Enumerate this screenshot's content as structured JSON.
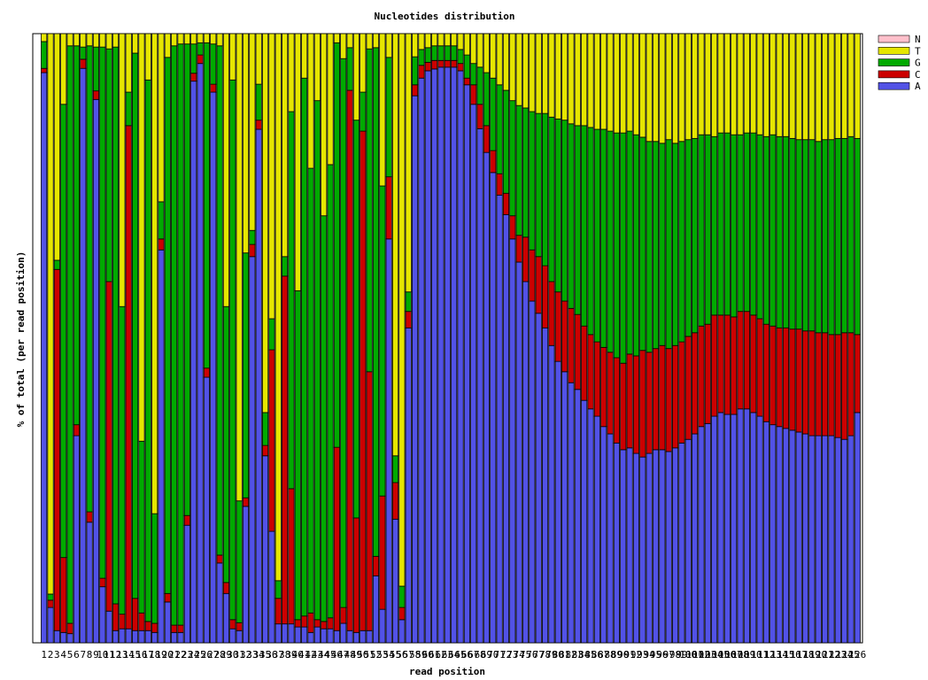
{
  "chart_data": {
    "type": "stacked-bar",
    "title": "Nucleotides distribution",
    "x_label": "read position",
    "y_label": "% of total (per read position)",
    "ylim": [
      0,
      100
    ],
    "legend_position": "upper right",
    "categories": [
      "1",
      "2",
      "3",
      "4",
      "5",
      "6",
      "7",
      "8",
      "9",
      "10",
      "11",
      "12",
      "13",
      "14",
      "15",
      "16",
      "17",
      "18",
      "19",
      "20",
      "21",
      "22",
      "23",
      "24",
      "25",
      "26",
      "27",
      "28",
      "29",
      "30",
      "31",
      "32",
      "33",
      "34",
      "35",
      "36",
      "37",
      "38",
      "39",
      "40",
      "41",
      "42",
      "43",
      "44",
      "45",
      "46",
      "47",
      "48",
      "49",
      "50",
      "51",
      "52",
      "53",
      "54",
      "55",
      "56",
      "57",
      "58",
      "59",
      "60",
      "61",
      "62",
      "63",
      "64",
      "65",
      "66",
      "67",
      "68",
      "69",
      "70",
      "71",
      "72",
      "73",
      "74",
      "75",
      "76",
      "77",
      "78",
      "79",
      "80",
      "81",
      "82",
      "83",
      "84",
      "85",
      "86",
      "87",
      "88",
      "89",
      "90",
      "91",
      "92",
      "93",
      "94",
      "95",
      "96",
      "97",
      "98",
      "99",
      "100",
      "101",
      "102",
      "103",
      "104",
      "105",
      "106",
      "107",
      "108",
      "109",
      "110",
      "111",
      "112",
      "113",
      "114",
      "115",
      "116",
      "117",
      "118",
      "119",
      "120",
      "121",
      "122",
      "123",
      "124",
      "125",
      "126"
    ],
    "series": [
      {
        "name": "A",
        "color": "#5252e6",
        "values": [
          93.6,
          5.8,
          2.0,
          1.7,
          1.5,
          34.0,
          94.3,
          19.8,
          89.2,
          9.2,
          5.2,
          2.0,
          2.3,
          2.3,
          2.0,
          2.0,
          2.0,
          1.7,
          64.5,
          6.7,
          1.7,
          1.7,
          19.3,
          92.2,
          95.1,
          43.6,
          90.4,
          13.1,
          8.1,
          2.3,
          2.0,
          22.4,
          63.4,
          84.3,
          30.7,
          18.3,
          3.1,
          3.1,
          3.1,
          2.6,
          2.6,
          1.7,
          2.6,
          2.3,
          2.3,
          2.0,
          3.2,
          2.0,
          1.7,
          2.0,
          2.0,
          11.0,
          5.5,
          66.3,
          20.3,
          3.8,
          51.7,
          89.8,
          92.7,
          93.9,
          94.2,
          94.5,
          94.5,
          94.5,
          93.9,
          91.6,
          88.4,
          84.4,
          80.5,
          77.2,
          73.5,
          70.3,
          66.3,
          62.5,
          59.3,
          56.1,
          54.1,
          51.7,
          48.8,
          46.2,
          44.5,
          42.7,
          41.6,
          39.8,
          38.4,
          37.2,
          35.5,
          34.3,
          32.8,
          31.7,
          32.0,
          31.1,
          30.5,
          31.1,
          31.7,
          31.7,
          31.4,
          32.0,
          32.8,
          33.4,
          34.3,
          35.5,
          36.0,
          37.2,
          37.8,
          37.5,
          37.5,
          38.4,
          38.4,
          37.8,
          37.2,
          36.3,
          35.8,
          35.5,
          35.2,
          34.9,
          34.6,
          34.3,
          34.0,
          34.0,
          34.0,
          34.0,
          33.7,
          33.4,
          34.0,
          37.8
        ]
      },
      {
        "name": "C",
        "color": "#cc0000",
        "values": [
          0.7,
          1.2,
          59.3,
          12.3,
          1.7,
          1.8,
          1.5,
          1.7,
          1.4,
          1.4,
          54.1,
          4.4,
          2.4,
          82.6,
          5.3,
          2.9,
          1.5,
          1.5,
          1.8,
          1.4,
          1.2,
          1.2,
          1.6,
          1.3,
          1.4,
          1.5,
          1.3,
          1.3,
          1.8,
          1.5,
          1.3,
          1.4,
          2.0,
          1.5,
          1.7,
          29.8,
          4.2,
          57.1,
          22.2,
          1.2,
          1.8,
          3.2,
          1.2,
          1.2,
          1.8,
          30.1,
          2.6,
          88.7,
          18.8,
          82.0,
          42.5,
          3.2,
          18.6,
          10.2,
          6.0,
          2.0,
          2.7,
          1.8,
          2.1,
          1.4,
          1.4,
          1.1,
          1.1,
          1.1,
          1.2,
          1.1,
          3.2,
          4.0,
          4.4,
          3.6,
          3.5,
          3.5,
          3.8,
          4.4,
          7.3,
          8.4,
          9.3,
          10.2,
          10.5,
          11.4,
          11.6,
          12.2,
          12.3,
          12.2,
          12.2,
          12.2,
          13.0,
          13.4,
          14.0,
          14.2,
          15.4,
          16.0,
          17.5,
          16.6,
          16.6,
          17.1,
          16.9,
          16.8,
          16.6,
          16.9,
          16.6,
          16.5,
          16.3,
          16.6,
          16.0,
          16.3,
          16.0,
          16.0,
          16.0,
          16.0,
          16.0,
          16.0,
          16.2,
          16.2,
          16.5,
          16.6,
          16.9,
          16.9,
          17.2,
          16.9,
          16.9,
          16.6,
          16.9,
          17.5,
          16.9,
          12.8
        ]
      },
      {
        "name": "G",
        "color": "#00aa00",
        "values": [
          4.4,
          1.0,
          1.5,
          74.4,
          94.8,
          62.2,
          2.0,
          76.5,
          7.2,
          87.2,
          38.2,
          91.4,
          50.5,
          5.5,
          89.5,
          28.2,
          88.9,
          18.0,
          6.1,
          88.0,
          95.1,
          95.4,
          77.4,
          4.8,
          2.0,
          53.4,
          6.6,
          83.6,
          45.3,
          88.6,
          20.0,
          40.2,
          2.3,
          5.9,
          5.4,
          5.1,
          2.9,
          3.2,
          61.9,
          54.0,
          88.3,
          73.0,
          85.2,
          66.6,
          74.4,
          66.4,
          90.1,
          7.0,
          65.3,
          6.4,
          53.0,
          83.5,
          50.9,
          19.6,
          4.4,
          3.5,
          3.2,
          4.6,
          2.6,
          2.4,
          2.4,
          2.4,
          2.4,
          2.4,
          2.3,
          3.8,
          3.5,
          6.1,
          8.7,
          11.9,
          14.6,
          16.9,
          18.9,
          21.3,
          21.2,
          22.7,
          23.5,
          25.0,
          27.0,
          28.4,
          29.7,
          30.3,
          31.0,
          32.9,
          34.0,
          34.9,
          35.8,
          36.3,
          36.9,
          37.8,
          36.6,
          36.3,
          35.0,
          34.6,
          34.0,
          33.2,
          34.3,
          33.2,
          32.9,
          32.3,
          31.9,
          31.4,
          31.1,
          29.3,
          29.9,
          29.9,
          29.9,
          29.0,
          29.3,
          29.9,
          30.2,
          30.8,
          31.4,
          31.4,
          31.4,
          31.3,
          31.1,
          31.4,
          31.4,
          31.4,
          31.7,
          32.0,
          32.2,
          31.9,
          32.2,
          32.2
        ]
      },
      {
        "name": "T",
        "color": "#e6e600",
        "values": [
          1.3,
          92.0,
          37.2,
          11.6,
          2.0,
          2.0,
          2.2,
          2.0,
          2.2,
          2.2,
          2.5,
          2.2,
          44.8,
          9.6,
          3.2,
          66.9,
          7.6,
          78.8,
          27.6,
          3.9,
          2.0,
          1.7,
          1.7,
          1.7,
          1.5,
          1.5,
          1.7,
          2.0,
          44.8,
          7.6,
          76.7,
          36.0,
          32.3,
          8.3,
          62.2,
          46.8,
          89.8,
          36.6,
          12.8,
          42.2,
          7.3,
          22.1,
          11.0,
          29.9,
          21.5,
          1.5,
          4.1,
          2.3,
          14.2,
          9.6,
          2.5,
          2.3,
          25.0,
          3.9,
          69.3,
          90.7,
          42.4,
          3.8,
          2.6,
          2.3,
          2.0,
          2.0,
          2.0,
          2.0,
          2.6,
          3.5,
          4.9,
          5.5,
          6.4,
          7.3,
          8.4,
          9.3,
          11.0,
          11.8,
          12.2,
          12.8,
          13.1,
          13.1,
          13.7,
          14.0,
          14.2,
          14.8,
          15.1,
          15.1,
          15.4,
          15.7,
          15.7,
          16.0,
          16.3,
          16.3,
          16.0,
          16.6,
          17.0,
          17.7,
          17.7,
          18.0,
          17.4,
          18.0,
          17.7,
          17.4,
          17.2,
          16.6,
          16.6,
          16.9,
          16.3,
          16.3,
          16.6,
          16.6,
          16.3,
          16.3,
          16.6,
          16.9,
          16.6,
          16.9,
          16.9,
          17.2,
          17.4,
          17.4,
          17.4,
          17.7,
          17.4,
          17.4,
          17.2,
          17.2,
          16.9,
          17.2
        ]
      },
      {
        "name": "N",
        "color": "#ffc0cb",
        "values": [
          0,
          0,
          0,
          0,
          0,
          0,
          0,
          0,
          0,
          0,
          0,
          0,
          0,
          0,
          0,
          0,
          0,
          0,
          0,
          0,
          0,
          0,
          0,
          0,
          0,
          0,
          0,
          0,
          0,
          0,
          0,
          0,
          0,
          0,
          0,
          0,
          0,
          0,
          0,
          0,
          0,
          0,
          0,
          0,
          0,
          0,
          0,
          0,
          0,
          0,
          0,
          0,
          0,
          0,
          0,
          0,
          0,
          0,
          0,
          0,
          0,
          0,
          0,
          0,
          0,
          0,
          0,
          0,
          0,
          0,
          0,
          0,
          0,
          0,
          0,
          0,
          0,
          0,
          0,
          0,
          0,
          0,
          0,
          0,
          0,
          0,
          0,
          0,
          0,
          0,
          0,
          0,
          0,
          0,
          0,
          0,
          0,
          0,
          0,
          0,
          0,
          0,
          0,
          0,
          0,
          0,
          0,
          0,
          0,
          0,
          0,
          0,
          0,
          0,
          0,
          0,
          0,
          0,
          0,
          0,
          0,
          0,
          0,
          0,
          0,
          0
        ]
      }
    ]
  }
}
